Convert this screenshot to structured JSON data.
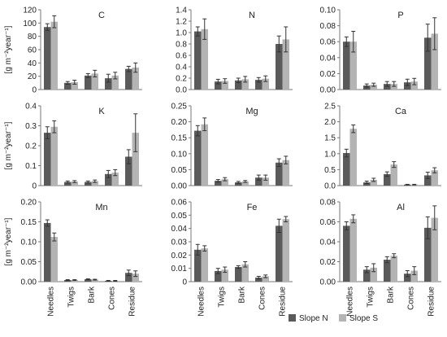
{
  "figure": {
    "categories": [
      "Needles",
      "Twigs",
      "Bark",
      "Cones",
      "Residue"
    ],
    "y_unit_label": "[g m⁻²year⁻¹]",
    "legend": [
      {
        "name": "Slope N",
        "color": "#5a5a5a"
      },
      {
        "name": "Slope S",
        "color": "#b4b4b4"
      }
    ]
  },
  "chart_data": [
    {
      "type": "bar",
      "title": "C",
      "categories": [
        "Needles",
        "Twigs",
        "Bark",
        "Cones",
        "Residue"
      ],
      "yticks": [
        "0",
        "20",
        "40",
        "60",
        "80",
        "100",
        "120"
      ],
      "ylim": [
        0,
        120
      ],
      "ylabel": "[g m⁻²year⁻¹]",
      "series": [
        {
          "name": "Slope N",
          "values": [
            94,
            10,
            21,
            17,
            31
          ],
          "errors": [
            5,
            2,
            3,
            6,
            4
          ]
        },
        {
          "name": "Slope S",
          "values": [
            102,
            11,
            24,
            21,
            33
          ],
          "errors": [
            9,
            3,
            5,
            5,
            7
          ]
        }
      ]
    },
    {
      "type": "bar",
      "title": "N",
      "categories": [
        "Needles",
        "Twigs",
        "Bark",
        "Cones",
        "Residue"
      ],
      "yticks": [
        "0.0",
        "0.2",
        "0.4",
        "0.6",
        "0.8",
        "1.0",
        "1.2",
        "1.4"
      ],
      "ylim": [
        0,
        1.4
      ],
      "ylabel": "",
      "series": [
        {
          "name": "Slope N",
          "values": [
            1.02,
            0.14,
            0.16,
            0.17,
            0.8
          ],
          "errors": [
            0.08,
            0.04,
            0.04,
            0.04,
            0.14
          ]
        },
        {
          "name": "Slope S",
          "values": [
            1.06,
            0.15,
            0.18,
            0.19,
            0.88
          ],
          "errors": [
            0.18,
            0.04,
            0.05,
            0.05,
            0.22
          ]
        }
      ]
    },
    {
      "type": "bar",
      "title": "P",
      "categories": [
        "Needles",
        "Twigs",
        "Bark",
        "Cones",
        "Residue"
      ],
      "yticks": [
        "0.00",
        "0.02",
        "0.04",
        "0.06",
        "0.08",
        "0.10"
      ],
      "ylim": [
        0,
        0.1
      ],
      "ylabel": "",
      "series": [
        {
          "name": "Slope N",
          "values": [
            0.06,
            0.005,
            0.007,
            0.009,
            0.065
          ],
          "errors": [
            0.006,
            0.002,
            0.003,
            0.004,
            0.017
          ]
        },
        {
          "name": "Slope S",
          "values": [
            0.06,
            0.006,
            0.007,
            0.01,
            0.07
          ],
          "errors": [
            0.013,
            0.002,
            0.003,
            0.004,
            0.02
          ]
        }
      ]
    },
    {
      "type": "bar",
      "title": "K",
      "categories": [
        "Needles",
        "Twigs",
        "Bark",
        "Cones",
        "Residue"
      ],
      "yticks": [
        "0",
        "0.1",
        "0.2",
        "0.3",
        "0.4"
      ],
      "ylim": [
        0,
        0.4
      ],
      "ylabel": "[g m⁻²year⁻¹]",
      "series": [
        {
          "name": "Slope N",
          "values": [
            0.265,
            0.018,
            0.018,
            0.058,
            0.145
          ],
          "errors": [
            0.03,
            0.005,
            0.005,
            0.018,
            0.035
          ]
        },
        {
          "name": "Slope S",
          "values": [
            0.295,
            0.02,
            0.022,
            0.065,
            0.265
          ],
          "errors": [
            0.03,
            0.005,
            0.006,
            0.015,
            0.095
          ]
        }
      ]
    },
    {
      "type": "bar",
      "title": "Mg",
      "categories": [
        "Needles",
        "Twigs",
        "Bark",
        "Cones",
        "Residue"
      ],
      "yticks": [
        "0.00",
        "0.05",
        "0.10",
        "0.15",
        "0.20",
        "0.25"
      ],
      "ylim": [
        0,
        0.25
      ],
      "ylabel": "",
      "series": [
        {
          "name": "Slope N",
          "values": [
            0.172,
            0.015,
            0.01,
            0.025,
            0.072
          ],
          "errors": [
            0.016,
            0.004,
            0.003,
            0.008,
            0.012
          ]
        },
        {
          "name": "Slope S",
          "values": [
            0.192,
            0.02,
            0.013,
            0.025,
            0.08
          ],
          "errors": [
            0.02,
            0.005,
            0.003,
            0.008,
            0.012
          ]
        }
      ]
    },
    {
      "type": "bar",
      "title": "Ca",
      "categories": [
        "Needles",
        "Twigs",
        "Bark",
        "Cones",
        "Residue"
      ],
      "yticks": [
        "0.0",
        "0.5",
        "1.0",
        "1.5",
        "2.0",
        "2.5"
      ],
      "ylim": [
        0,
        2.5
      ],
      "ylabel": "",
      "series": [
        {
          "name": "Slope N",
          "values": [
            1.02,
            0.1,
            0.36,
            0.03,
            0.32
          ],
          "errors": [
            0.12,
            0.04,
            0.07,
            0.01,
            0.1
          ]
        },
        {
          "name": "Slope S",
          "values": [
            1.78,
            0.18,
            0.66,
            0.03,
            0.48
          ],
          "errors": [
            0.12,
            0.05,
            0.09,
            0.01,
            0.08
          ]
        }
      ]
    },
    {
      "type": "bar",
      "title": "Mn",
      "categories": [
        "Needles",
        "Twigs",
        "Bark",
        "Cones",
        "Residue"
      ],
      "yticks": [
        "0.00",
        "0.05",
        "0.10",
        "0.15",
        "0.20"
      ],
      "ylim": [
        0,
        0.2
      ],
      "ylabel": "[g m⁻²year⁻¹]",
      "series": [
        {
          "name": "Slope N",
          "values": [
            0.147,
            0.004,
            0.006,
            0.002,
            0.022
          ],
          "errors": [
            0.008,
            0.001,
            0.001,
            0.001,
            0.007
          ]
        },
        {
          "name": "Slope S",
          "values": [
            0.112,
            0.004,
            0.005,
            0.002,
            0.02
          ],
          "errors": [
            0.01,
            0.001,
            0.001,
            0.001,
            0.007
          ]
        }
      ]
    },
    {
      "type": "bar",
      "title": "Fe",
      "categories": [
        "Needles",
        "Twigs",
        "Bark",
        "Cones",
        "Residue"
      ],
      "yticks": [
        "0",
        "0.01",
        "0.02",
        "0.03",
        "0.04",
        "0.05",
        "0.06"
      ],
      "ylim": [
        0,
        0.06
      ],
      "ylabel": "",
      "series": [
        {
          "name": "Slope N",
          "values": [
            0.024,
            0.008,
            0.011,
            0.003,
            0.042
          ],
          "errors": [
            0.004,
            0.002,
            0.001,
            0.001,
            0.005
          ]
        },
        {
          "name": "Slope S",
          "values": [
            0.025,
            0.009,
            0.013,
            0.004,
            0.047
          ],
          "errors": [
            0.002,
            0.002,
            0.002,
            0.001,
            0.002
          ]
        }
      ]
    },
    {
      "type": "bar",
      "title": "Al",
      "categories": [
        "Needles",
        "Twigs",
        "Bark",
        "Cones",
        "Residue"
      ],
      "yticks": [
        "0.00",
        "0.02",
        "0.04",
        "0.06",
        "0.08"
      ],
      "ylim": [
        0,
        0.08
      ],
      "ylabel": "",
      "series": [
        {
          "name": "Slope N",
          "values": [
            0.056,
            0.012,
            0.022,
            0.008,
            0.054
          ],
          "errors": [
            0.004,
            0.003,
            0.003,
            0.003,
            0.011
          ]
        },
        {
          "name": "Slope S",
          "values": [
            0.063,
            0.014,
            0.026,
            0.011,
            0.064
          ],
          "errors": [
            0.004,
            0.004,
            0.002,
            0.004,
            0.012
          ]
        }
      ]
    }
  ]
}
